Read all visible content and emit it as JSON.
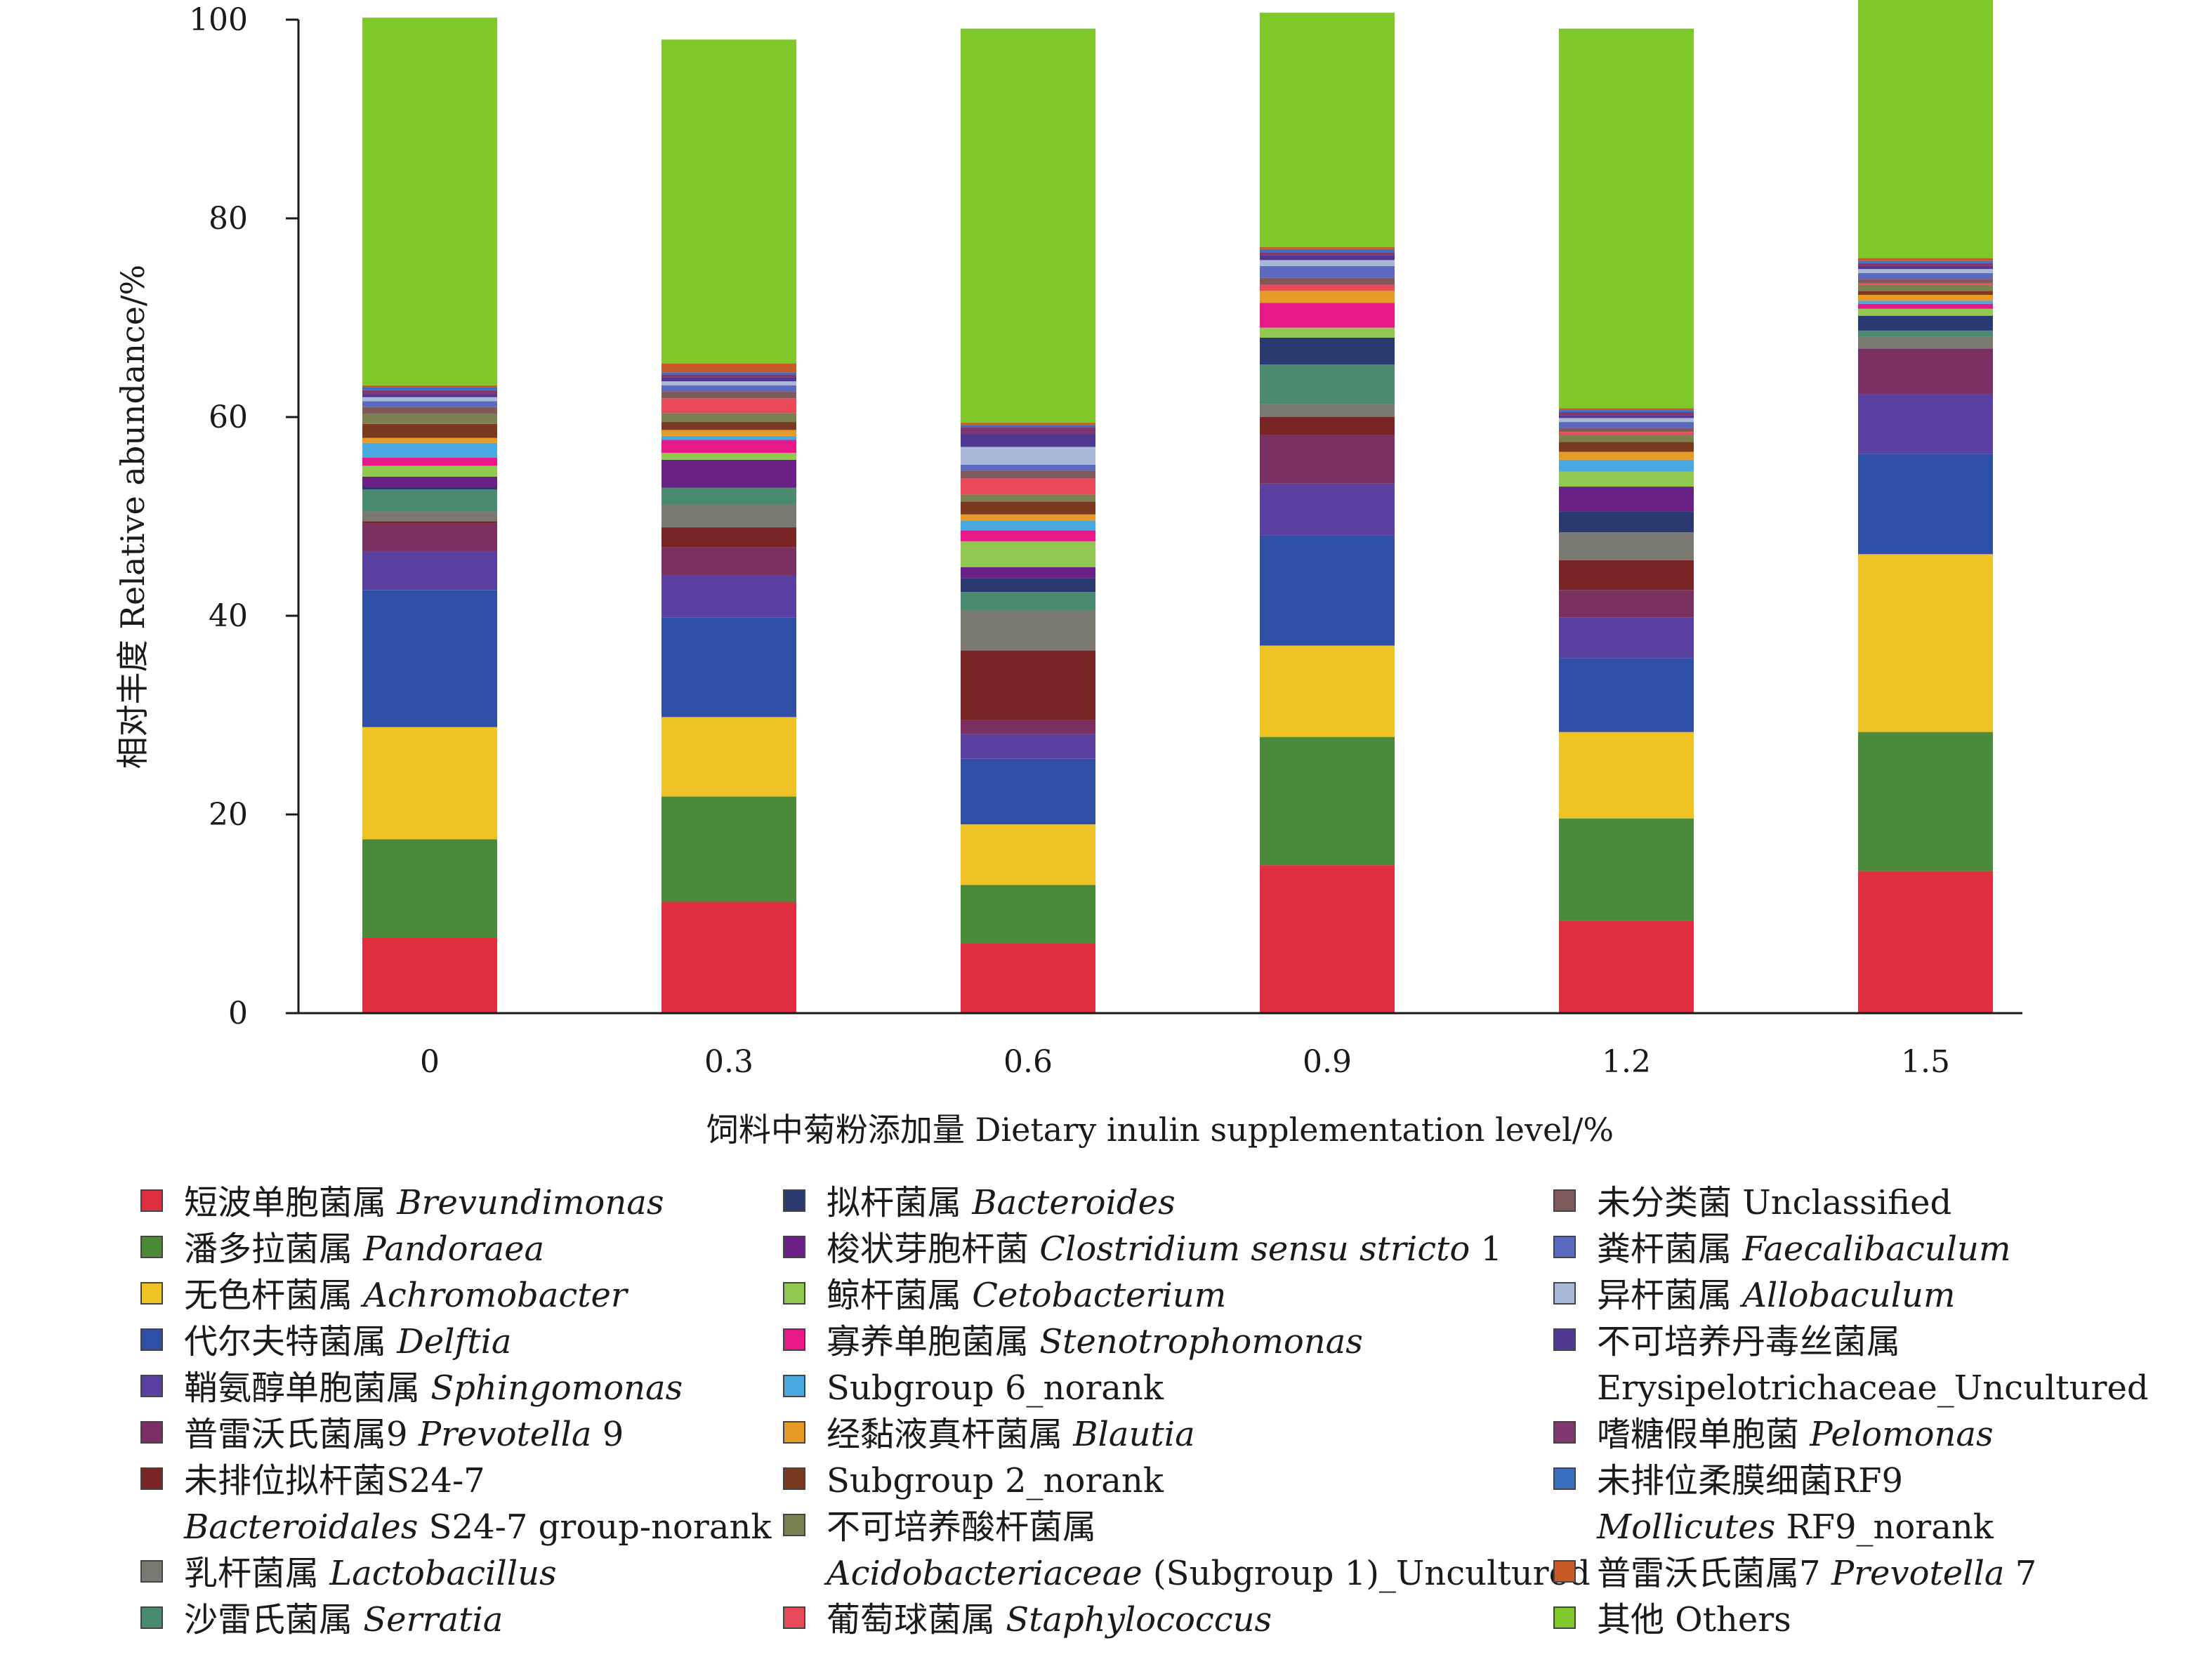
{
  "chart_data": {
    "type": "bar",
    "stacked": true,
    "xlabel": "饲料中菊粉添加量 Dietary inulin supplementation level/%",
    "ylabel": "相对丰度 Relative abundance/%",
    "categories": [
      "0",
      "0.3",
      "0.6",
      "0.9",
      "1.2",
      "1.5"
    ],
    "ylim": [
      0,
      100
    ],
    "yticks": [
      0,
      20,
      40,
      60,
      80,
      100
    ],
    "series": [
      {
        "name": "Brevundimonas",
        "color": "#e03040",
        "values": [
          7.6,
          11.2,
          7.0,
          14.9,
          9.3,
          14.3
        ]
      },
      {
        "name": "Pandoraea",
        "color": "#4a8a3a",
        "values": [
          9.9,
          10.6,
          5.9,
          12.9,
          10.3,
          14.0
        ]
      },
      {
        "name": "Achromobacter",
        "color": "#efc325",
        "values": [
          11.3,
          8.0,
          6.1,
          9.2,
          8.7,
          17.9
        ]
      },
      {
        "name": "Delftia",
        "color": "#3050a8",
        "values": [
          13.8,
          10.0,
          6.6,
          11.1,
          7.4,
          10.1
        ]
      },
      {
        "name": "Sphingomonas",
        "color": "#5a40a0",
        "values": [
          3.9,
          4.3,
          2.5,
          5.2,
          4.1,
          6.0
        ]
      },
      {
        "name": "Prevotella 9",
        "color": "#7a3060",
        "values": [
          2.8,
          2.8,
          1.4,
          4.9,
          2.8,
          4.6
        ]
      },
      {
        "name": "Bacteroidales S24-7 group-norank",
        "color": "#7a2525",
        "values": [
          0.2,
          2.0,
          7.0,
          1.8,
          3.0,
          0.0
        ]
      },
      {
        "name": "Lactobacillus",
        "color": "#7a7a72",
        "values": [
          1.0,
          2.3,
          4.0,
          1.3,
          2.8,
          1.2
        ]
      },
      {
        "name": "Serratia",
        "color": "#4a8a70",
        "values": [
          2.2,
          1.7,
          1.9,
          4.0,
          0.0,
          0.6
        ]
      },
      {
        "name": "Bacteroides",
        "color": "#2a3a70",
        "values": [
          0.3,
          0.0,
          1.4,
          2.7,
          2.1,
          1.5
        ]
      },
      {
        "name": "Clostridium sensu stricto 1",
        "color": "#6a2085",
        "values": [
          1.0,
          2.8,
          1.1,
          0.0,
          2.5,
          0.0
        ]
      },
      {
        "name": "Cetobacterium",
        "color": "#90c850",
        "values": [
          1.1,
          0.7,
          2.6,
          1.0,
          1.5,
          0.7
        ]
      },
      {
        "name": "Stenotrophomonas",
        "color": "#e8188a",
        "values": [
          0.8,
          1.3,
          1.1,
          2.5,
          0.0,
          0.5
        ]
      },
      {
        "name": "Subgroup 6_norank",
        "color": "#48a8e0",
        "values": [
          1.5,
          0.4,
          1.0,
          0.0,
          1.2,
          0.3
        ]
      },
      {
        "name": "Blautia",
        "color": "#e89a28",
        "values": [
          0.5,
          0.6,
          0.6,
          1.2,
          0.8,
          0.6
        ]
      },
      {
        "name": "Subgroup 2_norank",
        "color": "#7a3a20",
        "values": [
          1.4,
          0.8,
          1.3,
          0.0,
          1.0,
          0.4
        ]
      },
      {
        "name": "Acidobacteriaceae (Subgroup 1)_Uncultured",
        "color": "#7a8050",
        "values": [
          1.0,
          0.9,
          0.7,
          0.0,
          0.7,
          0.6
        ]
      },
      {
        "name": "Staphylococcus",
        "color": "#e84a5a",
        "values": [
          0.0,
          1.5,
          1.6,
          0.6,
          0.3,
          0.2
        ]
      },
      {
        "name": "Unclassified",
        "color": "#805a5a",
        "values": [
          0.7,
          0.7,
          0.8,
          0.7,
          0.4,
          0.4
        ]
      },
      {
        "name": "Faecalibaculum",
        "color": "#5a6ac0",
        "values": [
          0.6,
          0.6,
          0.6,
          1.2,
          0.6,
          0.6
        ]
      },
      {
        "name": "Allobaculum",
        "color": "#a8b8d8",
        "values": [
          0.4,
          0.4,
          1.8,
          0.6,
          0.4,
          0.4
        ]
      },
      {
        "name": "Erysipelotrichaceae_Uncultured",
        "color": "#503890",
        "values": [
          0.3,
          0.4,
          1.3,
          0.5,
          0.3,
          0.3
        ]
      },
      {
        "name": "Pelomonas",
        "color": "#803870",
        "values": [
          0.4,
          0.3,
          0.7,
          0.3,
          0.3,
          0.3
        ]
      },
      {
        "name": "Mollicutes RF9_norank",
        "color": "#3a70c0",
        "values": [
          0.3,
          0.2,
          0.2,
          0.3,
          0.2,
          0.2
        ]
      },
      {
        "name": "Prevotella 7",
        "color": "#c85a28",
        "values": [
          0.2,
          0.9,
          0.2,
          0.2,
          0.2,
          0.3
        ]
      },
      {
        "name": "Others",
        "color": "#80c82a",
        "values": [
          37.0,
          32.6,
          39.7,
          23.6,
          38.2,
          26.1
        ]
      }
    ]
  },
  "legend": [
    {
      "zh": "短波单胞菌属 ",
      "sci": "Brevundimonas",
      "plain": ""
    },
    {
      "zh": "潘多拉菌属 ",
      "sci": "Pandoraea",
      "plain": ""
    },
    {
      "zh": "无色杆菌属 ",
      "sci": "Achromobacter",
      "plain": ""
    },
    {
      "zh": "代尔夫特菌属 ",
      "sci": "Delftia",
      "plain": ""
    },
    {
      "zh": "鞘氨醇单胞菌属 ",
      "sci": "Sphingomonas",
      "plain": ""
    },
    {
      "zh": "普雷沃氏菌属9 ",
      "sci": "Prevotella",
      "plain": " 9"
    },
    {
      "zh": "未排位拟杆菌S24-7",
      "line2_sci": "Bacteroidales",
      "line2_plain": " S24-7 group-norank"
    },
    {
      "zh": "乳杆菌属 ",
      "sci": "Lactobacillus",
      "plain": ""
    },
    {
      "zh": "沙雷氏菌属 ",
      "sci": "Serratia",
      "plain": ""
    },
    {
      "zh": "拟杆菌属 ",
      "sci": "Bacteroides",
      "plain": ""
    },
    {
      "zh": "梭状芽胞杆菌 ",
      "sci": "Clostridium sensu stricto",
      "plain": " 1"
    },
    {
      "zh": "鲸杆菌属 ",
      "sci": "Cetobacterium",
      "plain": ""
    },
    {
      "zh": "寡养单胞菌属 ",
      "sci": "Stenotrophomonas",
      "plain": ""
    },
    {
      "zh": "",
      "sci": "",
      "plain": "Subgroup 6_norank"
    },
    {
      "zh": "经黏液真杆菌属 ",
      "sci": "Blautia",
      "plain": ""
    },
    {
      "zh": "",
      "sci": "",
      "plain": "Subgroup 2_norank"
    },
    {
      "zh": "不可培养酸杆菌属",
      "line2_sci": "Acidobacteriaceae",
      "line2_plain": " (Subgroup 1)_Uncultured"
    },
    {
      "zh": "葡萄球菌属 ",
      "sci": "Staphylococcus",
      "plain": ""
    },
    {
      "zh": "未分类菌 ",
      "sci": "",
      "plain": "Unclassified"
    },
    {
      "zh": "粪杆菌属 ",
      "sci": "Faecalibaculum",
      "plain": ""
    },
    {
      "zh": "异杆菌属 ",
      "sci": "Allobaculum",
      "plain": ""
    },
    {
      "zh": "不可培养丹毒丝菌属",
      "line2_sci": "",
      "line2_plain": "Erysipelotrichaceae_Uncultured"
    },
    {
      "zh": "嗜糖假单胞菌 ",
      "sci": "Pelomonas",
      "plain": ""
    },
    {
      "zh": "未排位柔膜细菌RF9",
      "line2_sci": "Mollicutes",
      "line2_plain": " RF9_norank"
    },
    {
      "zh": "普雷沃氏菌属7 ",
      "sci": "Prevotella",
      "plain": " 7"
    },
    {
      "zh": "其他 ",
      "sci": "",
      "plain": "Others"
    }
  ]
}
